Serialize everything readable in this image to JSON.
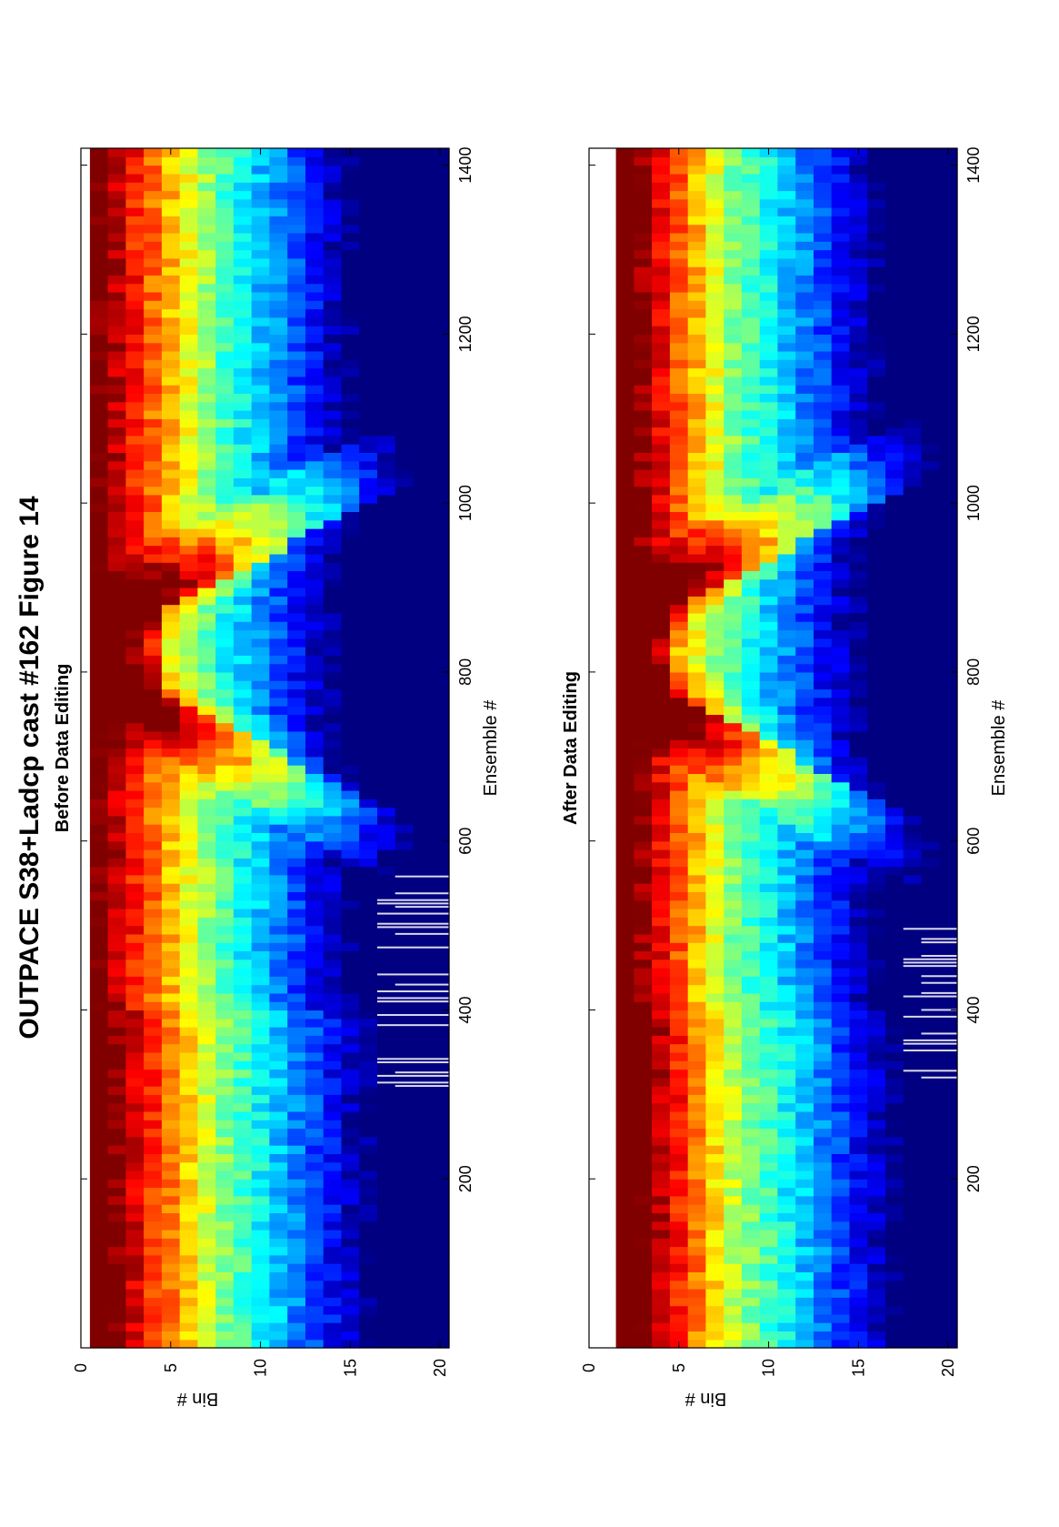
{
  "figure": {
    "title": "OUTPACE S38+Ladcp cast #162  Figure 14"
  },
  "chart_data": [
    {
      "type": "heatmap",
      "panel_title": "Before Data Editing",
      "xlabel": "Ensemble #",
      "ylabel": "Bin #",
      "xlim": [
        0,
        1420
      ],
      "ylim": [
        0,
        20.5
      ],
      "xticks": [
        200,
        400,
        600,
        800,
        1000,
        1200,
        1400
      ],
      "yticks": [
        0,
        5,
        10,
        15,
        20
      ],
      "colormap": "jet",
      "first_bin": 1,
      "bins": 20,
      "ensembles": 1420,
      "beam_pattern": {
        "description_values": "normalized echo intensity decreasing with bin; V-shaped high-intensity wedge",
        "wedge_vertex_ensemble": 820,
        "wedge_vertex_bin": 1,
        "wedge_left_edge_at_bin20_ensemble": 600,
        "wedge_right_edge_at_bin20_ensemble": 1030,
        "gap_ensembles": [
          [
            310,
            560
          ]
        ],
        "gap_bins": [
          17,
          20
        ]
      }
    },
    {
      "type": "heatmap",
      "panel_title": "After Data Editing",
      "xlabel": "Ensemble #",
      "ylabel": "Bin #",
      "xlim": [
        0,
        1420
      ],
      "ylim": [
        0,
        20.5
      ],
      "xticks": [
        200,
        400,
        600,
        800,
        1000,
        1200,
        1400
      ],
      "yticks": [
        0,
        5,
        10,
        15,
        20
      ],
      "colormap": "jet",
      "first_bin": 2,
      "bins": 20,
      "ensembles": 1420,
      "beam_pattern": {
        "wedge_vertex_ensemble": 820,
        "wedge_vertex_bin": 2,
        "wedge_left_edge_at_bin20_ensemble": 600,
        "wedge_right_edge_at_bin20_ensemble": 1030,
        "gap_ensembles": [
          [
            320,
            500
          ]
        ],
        "gap_bins": [
          18,
          20
        ]
      }
    }
  ]
}
